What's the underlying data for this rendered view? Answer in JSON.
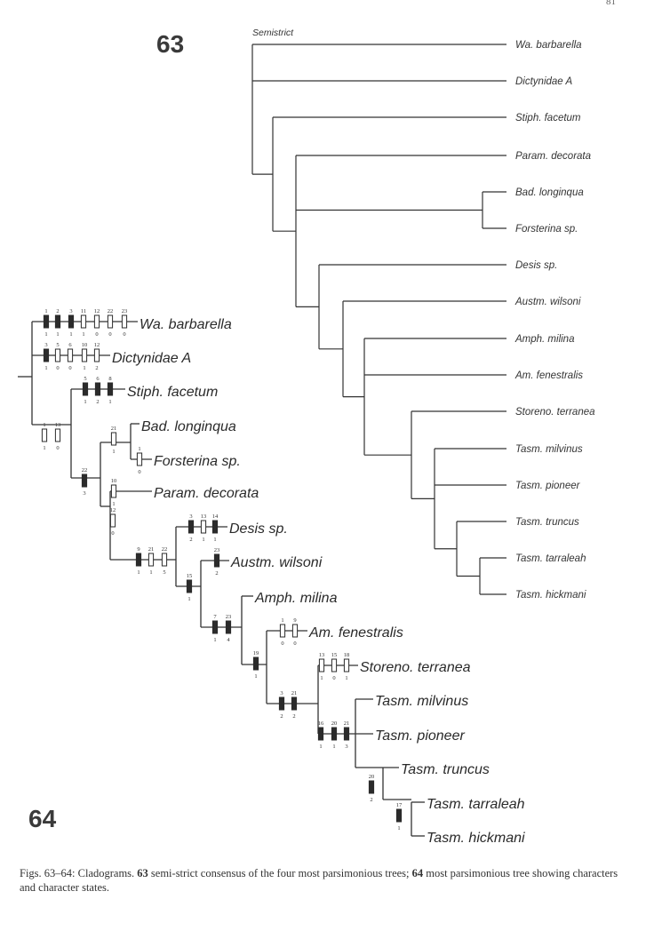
{
  "page": {
    "number": "81"
  },
  "fig63": {
    "label": "63",
    "consensus_label": "Semistrict",
    "taxa": [
      "Wa. barbarella",
      "Dictynidae A",
      "Stiph. facetum",
      "Param. decorata",
      "Bad. longinqua",
      "Forsterina sp.",
      "Desis sp.",
      "Austm. wilsoni",
      "Amph. milina",
      "Am. fenestralis",
      "Storeno. terranea",
      "Tasm. milvinus",
      "Tasm. pioneer",
      "Tasm. truncus",
      "Tasm. tarraleah",
      "Tasm. hickmani"
    ]
  },
  "fig64": {
    "label": "64",
    "taxa": [
      "Wa. barbarella",
      "Dictynidae A",
      "Stiph. facetum",
      "Bad. longinqua",
      "Forsterina sp.",
      "Param. decorata",
      "Desis sp.",
      "Austm. wilsoni",
      "Amph. milina",
      "Am. fenestralis",
      "Storeno. terranea",
      "Tasm. milvinus",
      "Tasm. pioneer",
      "Tasm. truncus",
      "Tasm. tarraleah",
      "Tasm. hickmani"
    ],
    "characters": [
      {
        "c": "1",
        "s": "1",
        "f": true
      },
      {
        "c": "2",
        "s": "1",
        "f": true
      },
      {
        "c": "3",
        "s": "1",
        "f": true
      },
      {
        "c": "11",
        "s": "1",
        "f": false
      },
      {
        "c": "12",
        "s": "0",
        "f": false
      },
      {
        "c": "22",
        "s": "0",
        "f": false
      },
      {
        "c": "23",
        "s": "0",
        "f": false
      },
      {
        "c": "3",
        "s": "1",
        "f": true
      },
      {
        "c": "5",
        "s": "0",
        "f": false
      },
      {
        "c": "6",
        "s": "0",
        "f": false
      },
      {
        "c": "10",
        "s": "1",
        "f": false
      },
      {
        "c": "12",
        "s": "2",
        "f": false
      },
      {
        "c": "5",
        "s": "1",
        "f": true
      },
      {
        "c": "6",
        "s": "2",
        "f": true
      },
      {
        "c": "8",
        "s": "1",
        "f": true
      },
      {
        "c": "1",
        "s": "1",
        "f": false
      },
      {
        "c": "13",
        "s": "0",
        "f": false
      },
      {
        "c": "21",
        "s": "1",
        "f": false
      },
      {
        "c": "1",
        "s": "0",
        "f": false
      },
      {
        "c": "22",
        "s": "3",
        "f": true
      },
      {
        "c": "10",
        "s": "1",
        "f": false
      },
      {
        "c": "12",
        "s": "0",
        "f": false
      },
      {
        "c": "3",
        "s": "2",
        "f": true
      },
      {
        "c": "13",
        "s": "1",
        "f": false
      },
      {
        "c": "14",
        "s": "1",
        "f": true
      },
      {
        "c": "9",
        "s": "1",
        "f": true
      },
      {
        "c": "21",
        "s": "1",
        "f": false
      },
      {
        "c": "22",
        "s": "5",
        "f": false
      },
      {
        "c": "23",
        "s": "2",
        "f": true
      },
      {
        "c": "15",
        "s": "1",
        "f": true
      },
      {
        "c": "7",
        "s": "1",
        "f": true
      },
      {
        "c": "23",
        "s": "4",
        "f": true
      },
      {
        "c": "1",
        "s": "0",
        "f": false
      },
      {
        "c": "9",
        "s": "0",
        "f": false
      },
      {
        "c": "19",
        "s": "1",
        "f": true
      },
      {
        "c": "13",
        "s": "1",
        "f": false
      },
      {
        "c": "15",
        "s": "0",
        "f": false
      },
      {
        "c": "18",
        "s": "1",
        "f": false
      },
      {
        "c": "3",
        "s": "2",
        "f": true
      },
      {
        "c": "21",
        "s": "2",
        "f": true
      },
      {
        "c": "16",
        "s": "1",
        "f": true
      },
      {
        "c": "20",
        "s": "1",
        "f": true
      },
      {
        "c": "21",
        "s": "3",
        "f": true
      },
      {
        "c": "20",
        "s": "2",
        "f": true
      },
      {
        "c": "17",
        "s": "1",
        "f": true
      }
    ]
  },
  "caption": {
    "prefix": "Figs. 63–64: Cladograms. ",
    "n1": "63",
    "t1": " semi-strict consensus of the four most parsimonious trees; ",
    "n2": "64",
    "t2": " most parsimonious tree showing characters and character states."
  }
}
